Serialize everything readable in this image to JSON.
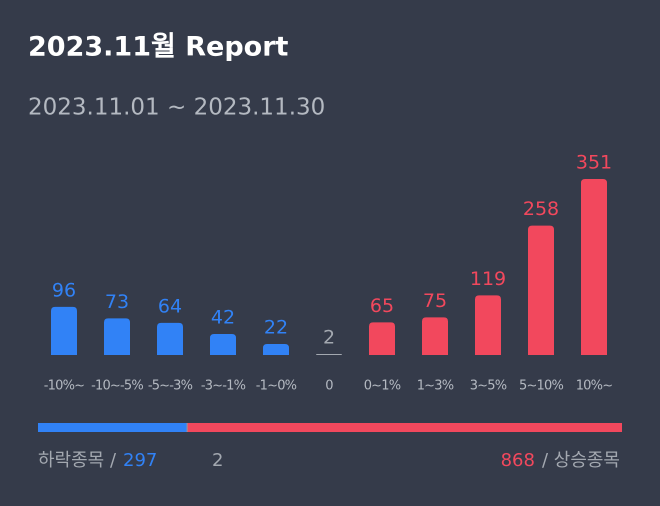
{
  "title": "2023.11월 Report",
  "subtitle": "2023.11.01 ~ 2023.11.30",
  "chart_data": {
    "type": "bar",
    "categories": [
      "-10%~",
      "-10~-5%",
      "-5~-3%",
      "-3~-1%",
      "-1~0%",
      "0",
      "0~1%",
      "1~3%",
      "3~5%",
      "5~10%",
      "10%~"
    ],
    "values": [
      96,
      73,
      64,
      42,
      22,
      2,
      65,
      75,
      119,
      258,
      351
    ],
    "colors": [
      "#3182f6",
      "#3182f6",
      "#3182f6",
      "#3182f6",
      "#3182f6",
      "#a3a8b0",
      "#f2485d",
      "#f2485d",
      "#f2485d",
      "#f2485d",
      "#f2485d"
    ]
  },
  "footer": {
    "down_label": "하락종목 /",
    "down": 297,
    "down_color": "#3182f6",
    "flat": 2,
    "flat_color": "#a3a8b0",
    "up": 868,
    "up_color": "#f2485d",
    "up_label": "/ 상승종목"
  }
}
